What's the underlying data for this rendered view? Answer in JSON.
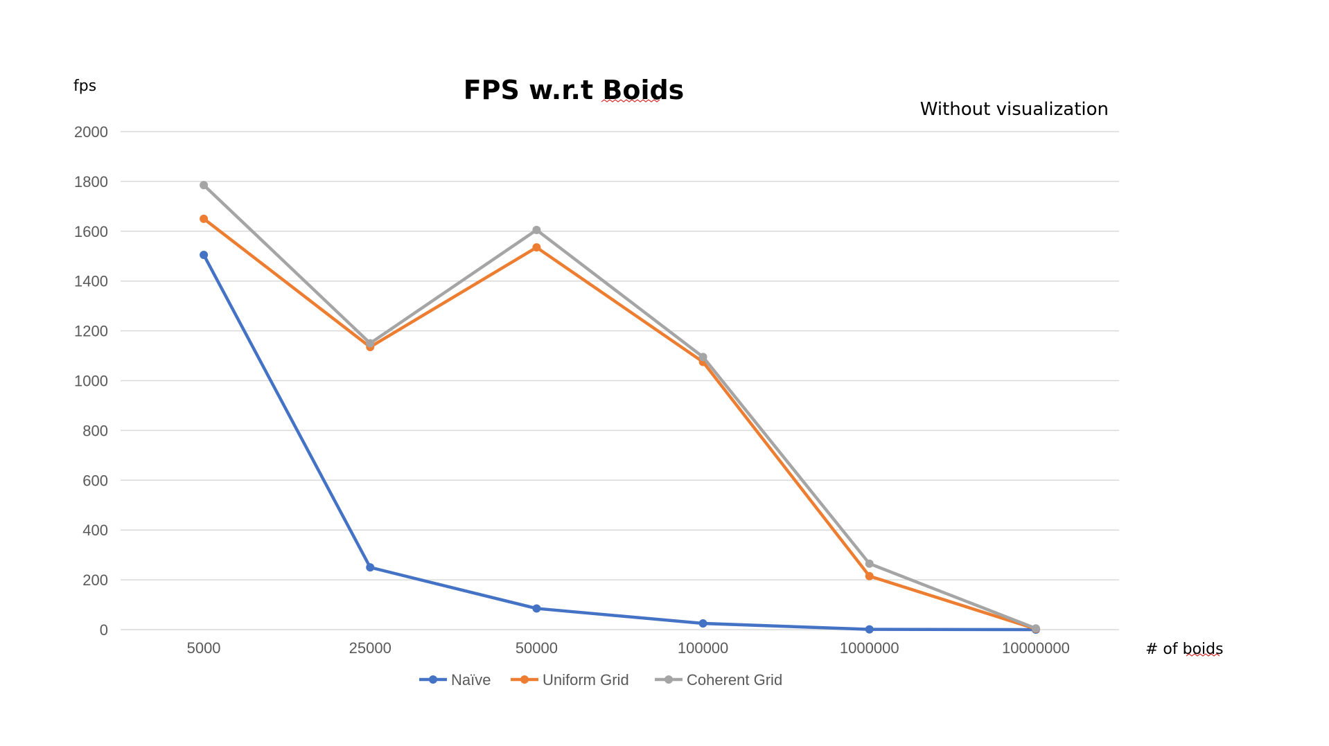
{
  "chart_data": {
    "type": "line",
    "title": "FPS w.r.t Boids",
    "subtitle": "Without visualization",
    "xlabel": "# of boids",
    "ylabel": "fps",
    "categories": [
      "5000",
      "25000",
      "50000",
      "100000",
      "1000000",
      "10000000"
    ],
    "ylim": [
      0,
      2000
    ],
    "yticks": [
      0,
      200,
      400,
      600,
      800,
      1000,
      1200,
      1400,
      1600,
      1800,
      2000
    ],
    "grid": true,
    "legend_position": "bottom",
    "series": [
      {
        "name": "Naïve",
        "color": "#4472c4",
        "values": [
          1505,
          250,
          85,
          25,
          1,
          0
        ]
      },
      {
        "name": "Uniform Grid",
        "color": "#ed7d31",
        "values": [
          1650,
          1135,
          1535,
          1075,
          215,
          3
        ]
      },
      {
        "name": "Coherent Grid",
        "color": "#a5a5a5",
        "values": [
          1785,
          1150,
          1605,
          1095,
          265,
          5
        ]
      }
    ]
  }
}
